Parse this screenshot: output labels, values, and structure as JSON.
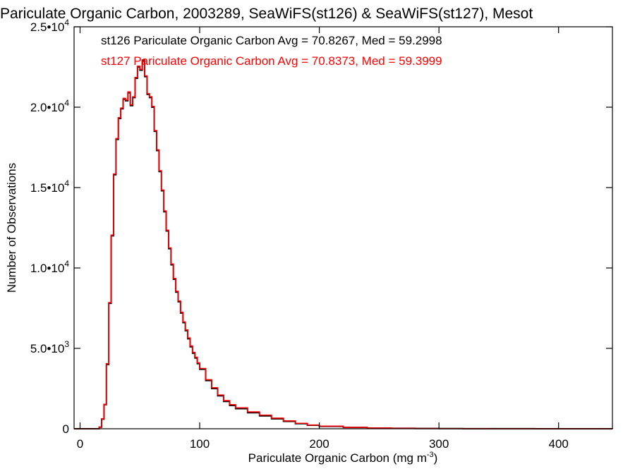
{
  "chart_data": {
    "type": "line",
    "style": "step-histogram",
    "title": "Pariculate Organic Carbon, 2003289, SeaWiFS(st126) & SeaWiFS(st127), Mesot",
    "xlabel": "Pariculate Organic Carbon (mg m",
    "xlabel_superscript": "-3",
    "xlabel_suffix": ")",
    "ylabel": "Number of Observations",
    "xlim": [
      -5,
      445
    ],
    "ylim": [
      0,
      25000
    ],
    "grid": false,
    "legend_position": "top-left",
    "x_ticks": [
      {
        "value": 0,
        "label": "0"
      },
      {
        "value": 100,
        "label": "100"
      },
      {
        "value": 200,
        "label": "200"
      },
      {
        "value": 300,
        "label": "300"
      },
      {
        "value": 400,
        "label": "400"
      }
    ],
    "y_ticks": [
      {
        "value": 0,
        "mantissa": "0",
        "exp": ""
      },
      {
        "value": 5000,
        "mantissa": "5.0•10",
        "exp": "3"
      },
      {
        "value": 10000,
        "mantissa": "1.0•10",
        "exp": "4"
      },
      {
        "value": 15000,
        "mantissa": "1.5•10",
        "exp": "4"
      },
      {
        "value": 20000,
        "mantissa": "2.0•10",
        "exp": "4"
      },
      {
        "value": 25000,
        "mantissa": "2.5•10",
        "exp": "4"
      }
    ],
    "series": [
      {
        "name": "st126",
        "legend": "st126 Pariculate Organic Carbon Avg = 70.8267, Med = 59.2998",
        "color": "#000000",
        "x": [
          -5,
          0,
          5,
          10,
          14,
          16,
          18,
          20,
          22,
          24,
          26,
          28,
          30,
          32,
          34,
          36,
          38,
          40,
          42,
          44,
          46,
          48,
          50,
          52,
          54,
          56,
          58,
          60,
          62,
          64,
          66,
          68,
          70,
          72,
          74,
          76,
          78,
          80,
          82,
          84,
          86,
          88,
          90,
          92,
          94,
          96,
          98,
          100,
          105,
          110,
          115,
          120,
          125,
          130,
          140,
          150,
          160,
          170,
          180,
          190,
          200,
          220,
          240,
          260,
          280,
          300,
          320,
          340,
          360,
          380,
          400,
          420,
          445
        ],
        "y": [
          0,
          0,
          0,
          0,
          0,
          100,
          600,
          1500,
          4000,
          7800,
          12000,
          15800,
          18000,
          19300,
          19900,
          20500,
          20400,
          20900,
          20100,
          20600,
          21800,
          22500,
          22300,
          22900,
          21900,
          20800,
          20600,
          20000,
          18500,
          17300,
          16000,
          14800,
          13500,
          12300,
          11200,
          10200,
          9300,
          8500,
          7900,
          7200,
          6600,
          6100,
          5600,
          5100,
          4700,
          4400,
          4050,
          3700,
          3000,
          2500,
          2050,
          1700,
          1450,
          1250,
          1000,
          800,
          620,
          460,
          320,
          220,
          150,
          80,
          45,
          25,
          15,
          10,
          6,
          4,
          3,
          2,
          1,
          1,
          0
        ]
      },
      {
        "name": "st127",
        "legend": "st127 Pariculate Organic Carbon Avg = 70.8373, Med = 59.3999",
        "color": "#ff0000",
        "x": [
          -5,
          0,
          5,
          10,
          14,
          16,
          18,
          20,
          22,
          24,
          26,
          28,
          30,
          32,
          34,
          36,
          38,
          40,
          42,
          44,
          46,
          48,
          50,
          52,
          54,
          56,
          58,
          60,
          62,
          64,
          66,
          68,
          70,
          72,
          74,
          76,
          78,
          80,
          82,
          84,
          86,
          88,
          90,
          92,
          94,
          96,
          98,
          100,
          105,
          110,
          115,
          120,
          125,
          130,
          140,
          150,
          160,
          170,
          180,
          190,
          200,
          220,
          240,
          260,
          280,
          300,
          320,
          340,
          360,
          380,
          400,
          420,
          445
        ],
        "y": [
          0,
          0,
          0,
          0,
          0,
          110,
          620,
          1520,
          4050,
          7850,
          12050,
          15850,
          18050,
          19350,
          19950,
          20550,
          20450,
          20950,
          20150,
          20650,
          21850,
          22550,
          22350,
          22950,
          21950,
          20850,
          20650,
          20050,
          18550,
          17350,
          16050,
          14850,
          13550,
          12350,
          11250,
          10250,
          9350,
          8550,
          7950,
          7250,
          6650,
          6150,
          5650,
          5150,
          4750,
          4450,
          4100,
          3750,
          3050,
          2550,
          2100,
          1750,
          1500,
          1300,
          1050,
          850,
          660,
          490,
          340,
          235,
          160,
          85,
          48,
          27,
          16,
          11,
          7,
          5,
          3,
          2,
          1,
          1,
          0
        ]
      }
    ]
  }
}
